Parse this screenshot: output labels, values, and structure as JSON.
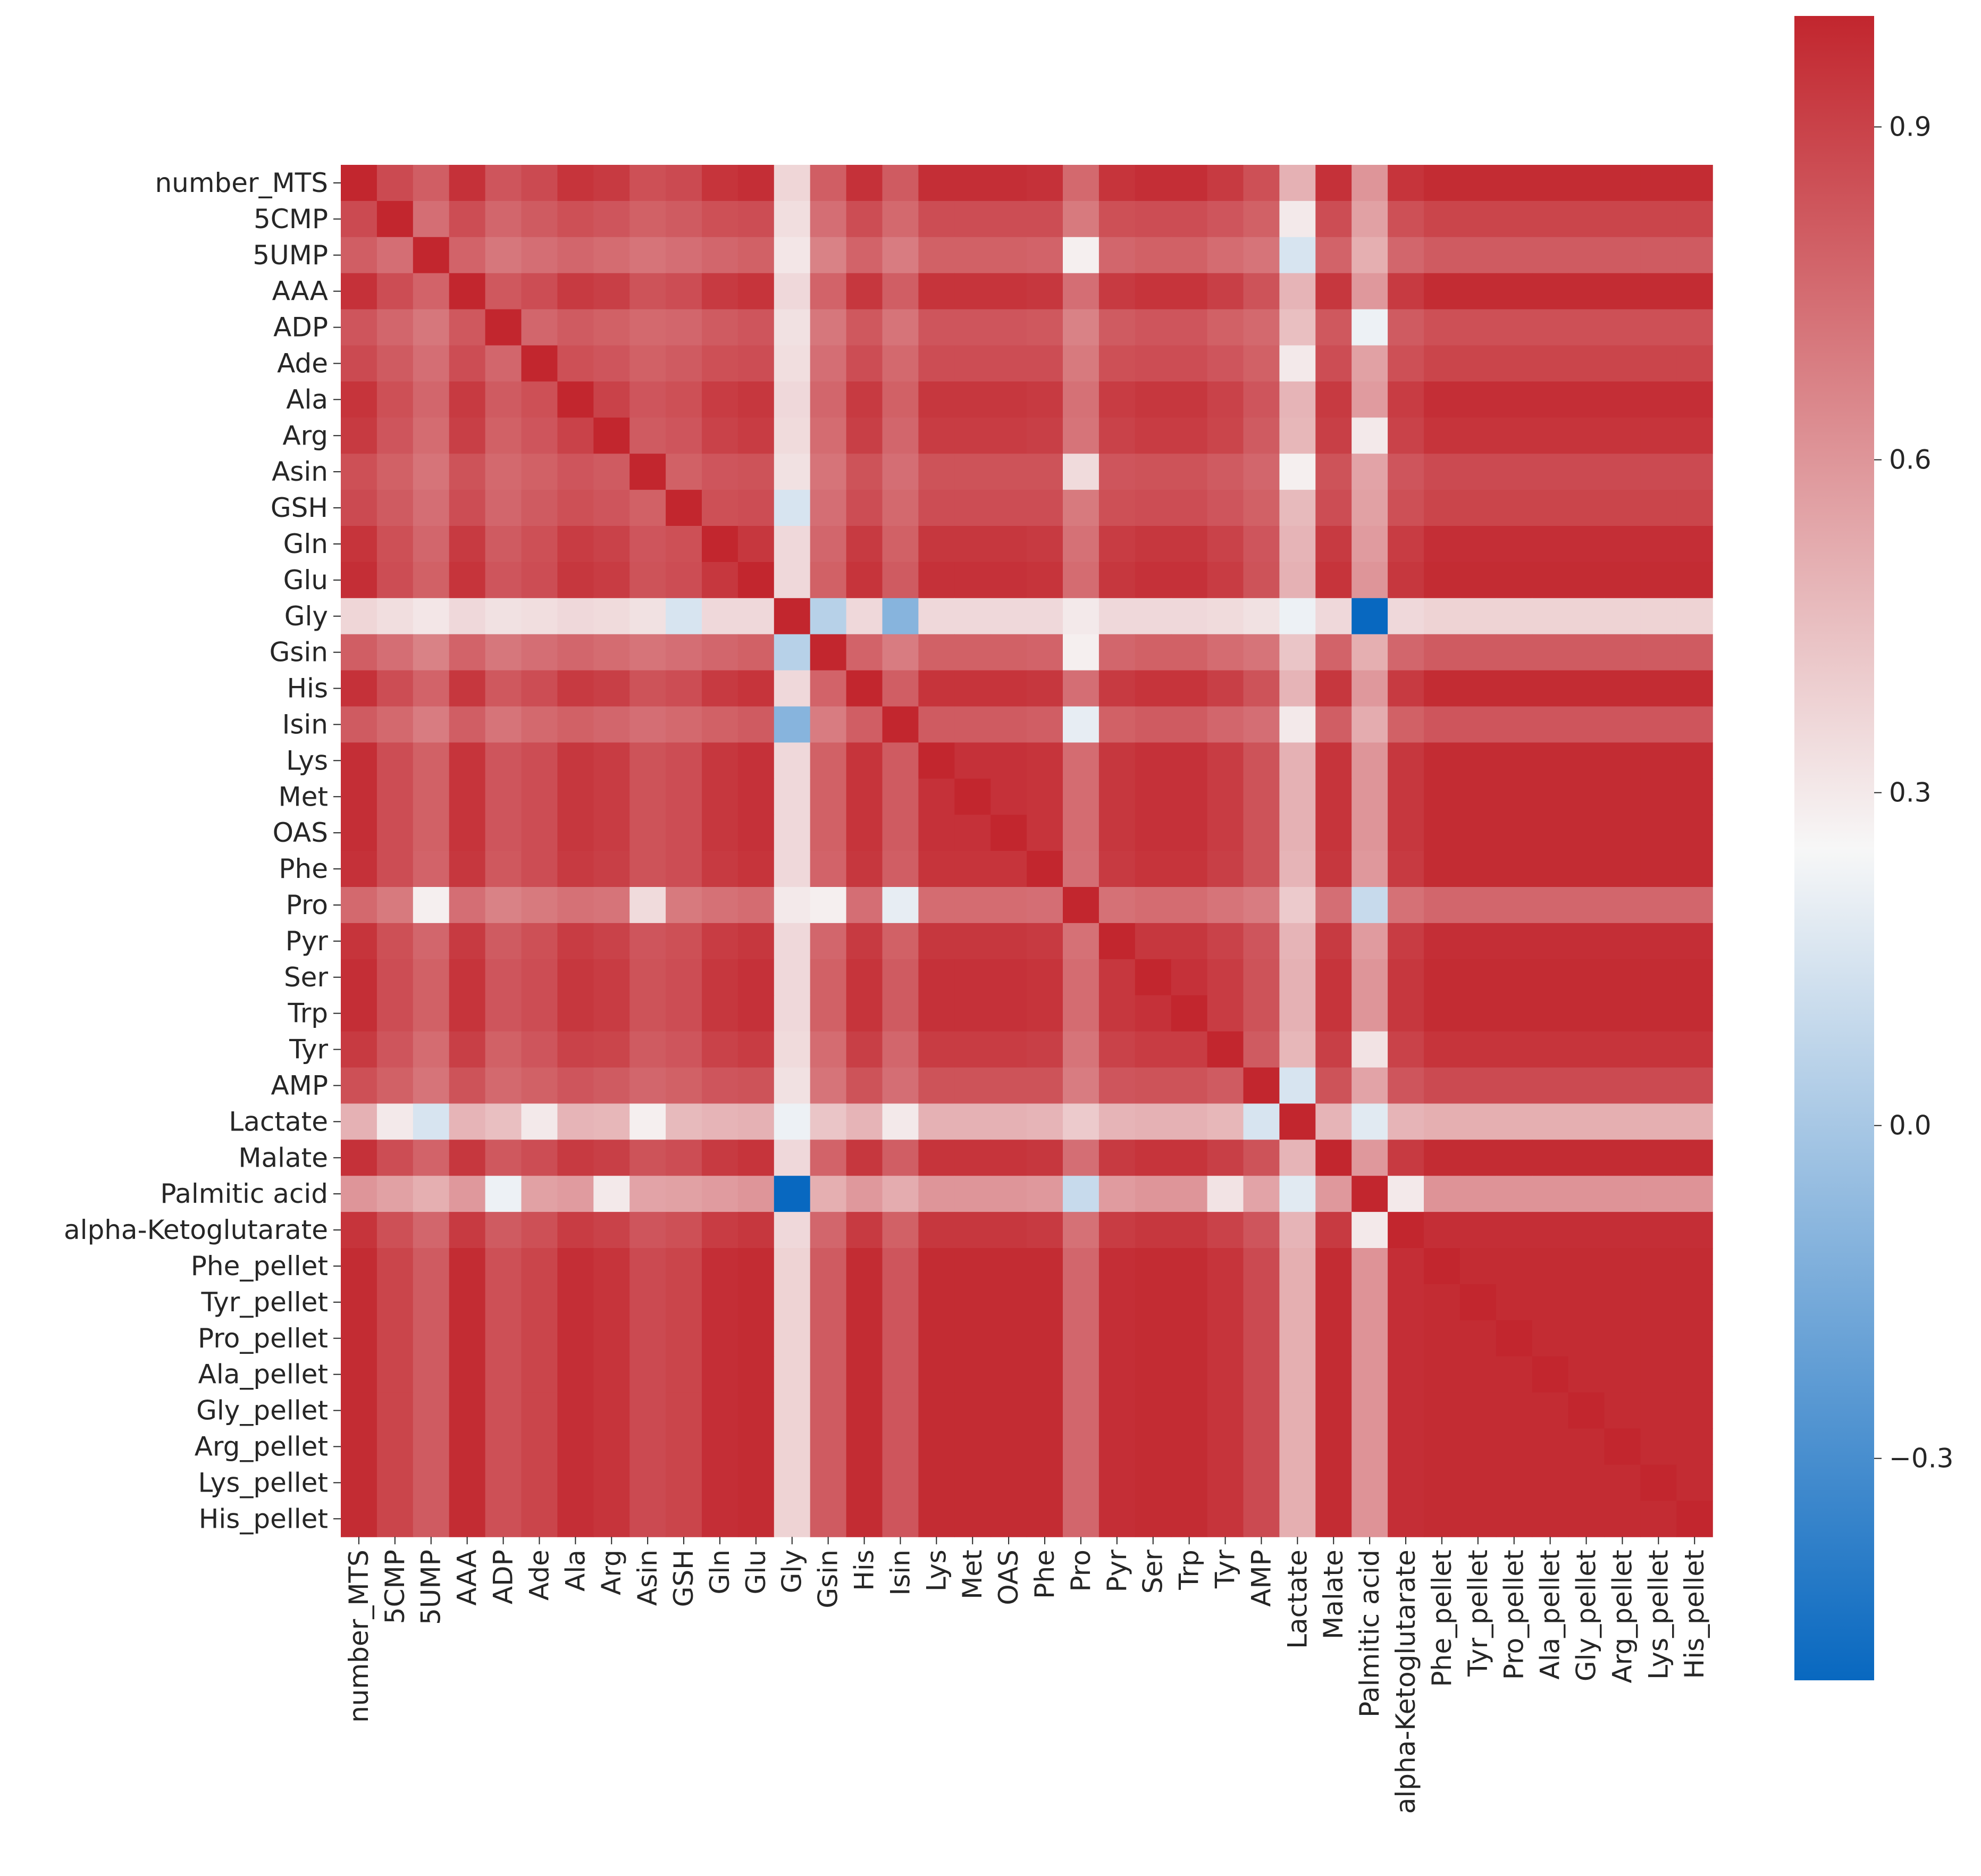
{
  "chart_data": {
    "type": "heatmap",
    "title": "",
    "xlabel": "",
    "ylabel": "",
    "labels": [
      "number_MTS",
      "5CMP",
      "5UMP",
      "AAA",
      "ADP",
      "Ade",
      "Ala",
      "Arg",
      "Asin",
      "GSH",
      "Gln",
      "Glu",
      "Gly",
      "Gsin",
      "His",
      "Isin",
      "Lys",
      "Met",
      "OAS",
      "Phe",
      "Pro",
      "Pyr",
      "Ser",
      "Trp",
      "Tyr",
      "AMP",
      "Lactate",
      "Malate",
      "Palmitic acid",
      "alpha-Ketoglutarate",
      "Phe_pellet",
      "Tyr_pellet",
      "Pro_pellet",
      "Ala_pellet",
      "Gly_pellet",
      "Arg_pellet",
      "Lys_pellet",
      "His_pellet"
    ],
    "colorbar": {
      "vmin": -0.5,
      "vmax": 1.0,
      "ticks": [
        0.9,
        0.6,
        0.3,
        0.0,
        -0.3
      ],
      "tick_labels": [
        "0.9",
        "0.6",
        "0.3",
        "0.0",
        "−0.3"
      ],
      "colormap": [
        "#0868C0",
        "#F7F7F7",
        "#C2262E"
      ]
    },
    "row_profiles": [
      0.97,
      0.9,
      0.82,
      0.95,
      0.86,
      0.9,
      0.94,
      0.92,
      0.88,
      0.9,
      0.94,
      0.96,
      0.38,
      0.82,
      0.95,
      0.84,
      0.96,
      0.96,
      0.96,
      0.95,
      0.78,
      0.94,
      0.96,
      0.96,
      0.92,
      0.88,
      0.52,
      0.95,
      0.62,
      0.94,
      0.99,
      0.99,
      0.99,
      0.99,
      0.99,
      0.99,
      0.99,
      0.99
    ],
    "overrides": [
      {
        "row": "Gly",
        "col": "Palmitic acid",
        "value": -0.5
      },
      {
        "row": "Gly",
        "col": "Isin",
        "value": -0.1
      },
      {
        "row": "Gly",
        "col": "Gsin",
        "value": 0.05
      },
      {
        "row": "Gly",
        "col": "GSH",
        "value": 0.12
      },
      {
        "row": "Pro",
        "col": "Palmitic acid",
        "value": 0.08
      },
      {
        "row": "Pro",
        "col": "Isin",
        "value": 0.22
      },
      {
        "row": "Pro",
        "col": "Gsin",
        "value": 0.28
      },
      {
        "row": "Pro",
        "col": "5UMP",
        "value": 0.3
      },
      {
        "row": "Pro",
        "col": "Asin",
        "value": 0.35
      },
      {
        "row": "Lactate",
        "col": "Palmitic acid",
        "value": 0.1
      },
      {
        "row": "Lactate",
        "col": "AMP",
        "value": 0.15
      },
      {
        "row": "Lactate",
        "col": "5UMP",
        "value": 0.12
      },
      {
        "row": "Lactate",
        "col": "5CMP",
        "value": 0.28
      },
      {
        "row": "Lactate",
        "col": "Asin",
        "value": 0.25
      },
      {
        "row": "Lactate",
        "col": "Isin",
        "value": 0.25
      },
      {
        "row": "Lactate",
        "col": "Ade",
        "value": 0.28
      },
      {
        "row": "Lactate",
        "col": "Gly",
        "value": 0.22
      },
      {
        "row": "Palmitic acid",
        "col": "alpha-Ketoglutarate",
        "value": 0.3
      },
      {
        "row": "Palmitic acid",
        "col": "ADP",
        "value": 0.2
      },
      {
        "row": "Palmitic acid",
        "col": "Arg",
        "value": 0.32
      },
      {
        "row": "Palmitic acid",
        "col": "Tyr",
        "value": 0.32
      },
      {
        "row": "Palmitic acid",
        "col": "Lactate",
        "value": 0.18
      },
      {
        "row": "Palmitic acid",
        "col": "Pro",
        "value": 0.1
      },
      {
        "row": "5UMP",
        "col": "Lactate",
        "value": 0.15
      },
      {
        "row": "5UMP",
        "col": "Pro",
        "value": 0.28
      },
      {
        "row": "Isin",
        "col": "Pro",
        "value": 0.2
      },
      {
        "row": "Isin",
        "col": "Lactate",
        "value": 0.3
      },
      {
        "row": "Gsin",
        "col": "Pro",
        "value": 0.28
      },
      {
        "row": "Asin",
        "col": "Pro",
        "value": 0.35
      },
      {
        "row": "Asin",
        "col": "Lactate",
        "value": 0.28
      },
      {
        "row": "GSH",
        "col": "Gly",
        "value": 0.15
      },
      {
        "row": "ADP",
        "col": "Palmitic acid",
        "value": 0.22
      },
      {
        "row": "Ade",
        "col": "Lactate",
        "value": 0.3
      },
      {
        "row": "Arg",
        "col": "Palmitic acid",
        "value": 0.3
      },
      {
        "row": "AMP",
        "col": "Lactate",
        "value": 0.15
      },
      {
        "row": "Tyr",
        "col": "Palmitic acid",
        "value": 0.32
      },
      {
        "row": "5CMP",
        "col": "Lactate",
        "value": 0.3
      },
      {
        "row": "alpha-Ketoglutarate",
        "col": "Palmitic acid",
        "value": 0.3
      }
    ]
  }
}
